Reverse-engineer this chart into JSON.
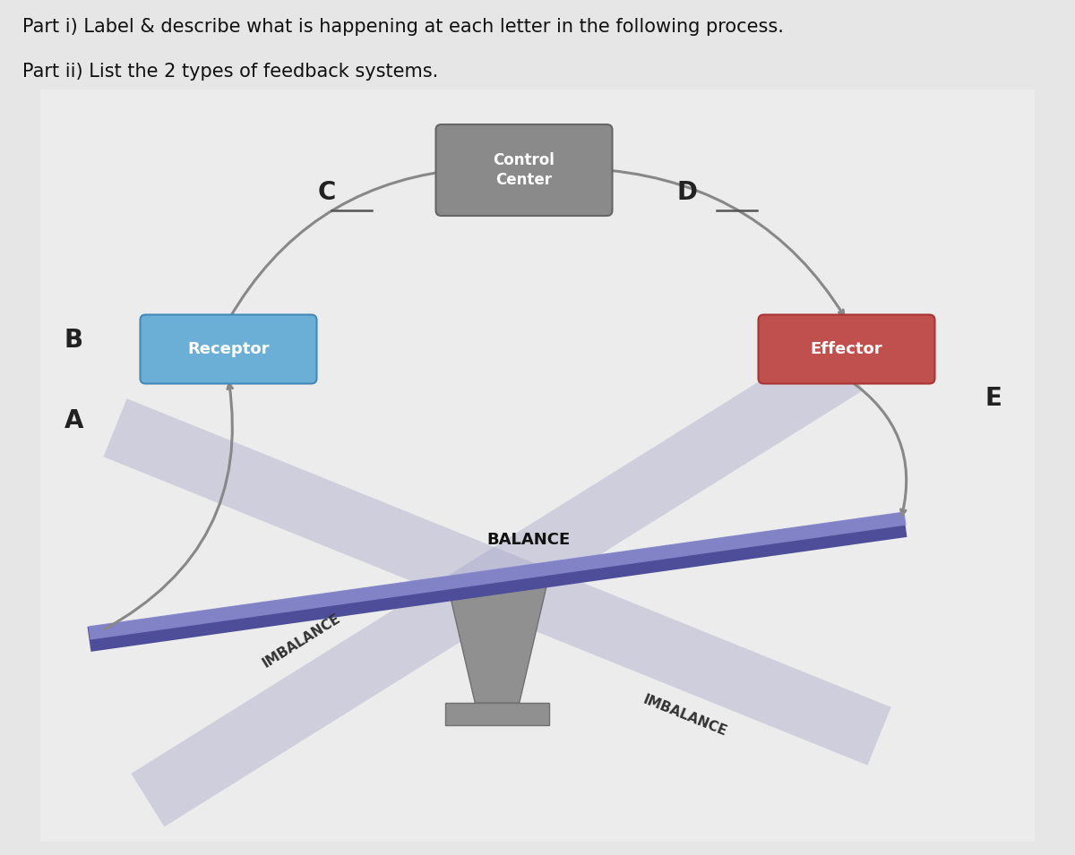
{
  "title_line1": "Part i) Label & describe what is happening at each letter in the following process.",
  "title_line2": "Part ii) List the 2 types of feedback systems.",
  "page_bg": "#e6e6e6",
  "diagram_bg": "#ebebeb",
  "receptor_box_color": "#6baed6",
  "control_box_color": "#8a8a8a",
  "effector_box_color": "#c0504d",
  "receptor_text": "Receptor",
  "control_text": "Control\nCenter",
  "effector_text": "Effector",
  "label_A": "A",
  "label_B": "B",
  "label_C": "C",
  "label_D": "D",
  "label_E": "E",
  "imbalance_left": "IMBALANCE",
  "balance_text": "BALANCE",
  "imbalance_right": "IMBALANCE",
  "beam_main_color": "#6666aa",
  "beam_highlight_color": "#8888cc",
  "beam_ghost_color": "#aaaacc",
  "pivot_color": "#888888",
  "arrow_color": "#888888",
  "title_fontsize": 15,
  "label_fontsize": 20
}
